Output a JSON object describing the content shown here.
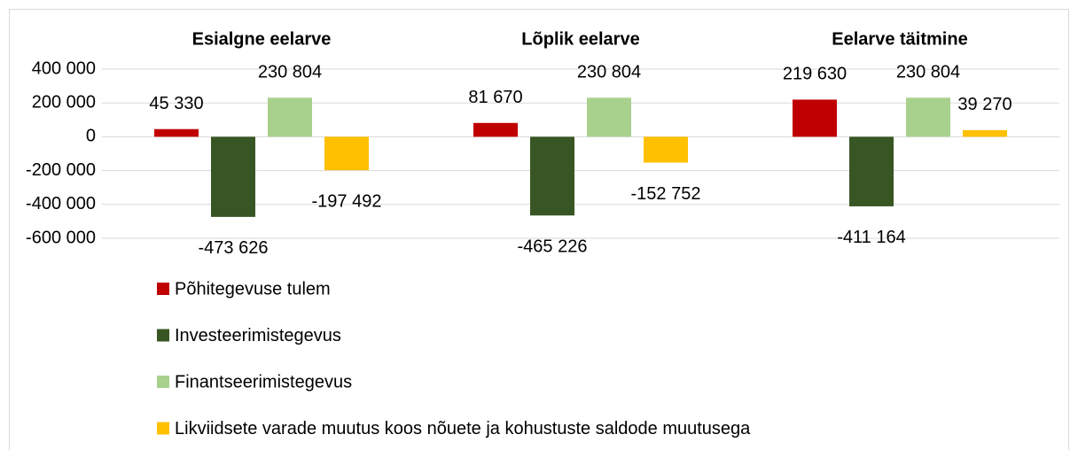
{
  "chart_data": {
    "type": "bar",
    "categories": [
      "Esialgne eelarve",
      "Lõplik eelarve",
      "Eelarve täitmine"
    ],
    "series": [
      {
        "name": "Põhitegevuse tulem",
        "color": "#c00000",
        "values": [
          45330,
          81670,
          219630
        ],
        "value_labels": [
          "45 330",
          "81 670",
          "219 630"
        ]
      },
      {
        "name": "Investeerimistegevus",
        "color": "#375623",
        "values": [
          -473626,
          -465226,
          -411164
        ],
        "value_labels": [
          "-473 626",
          "-465 226",
          "-411 164"
        ]
      },
      {
        "name": "Finantseerimistegevus",
        "color": "#a9d18e",
        "values": [
          230804,
          230804,
          230804
        ],
        "value_labels": [
          "230 804",
          "230 804",
          "230 804"
        ]
      },
      {
        "name": "Likviidsete varade muutus koos nõuete ja kohustuste saldode muutusega",
        "color": "#ffc000",
        "values": [
          -197492,
          -152752,
          39270
        ],
        "value_labels": [
          "-197 492",
          "-152 752",
          "39 270"
        ]
      }
    ],
    "ylim": [
      -600000,
      400000
    ],
    "yticks": [
      {
        "value": -600000,
        "label": "-600 000"
      },
      {
        "value": -400000,
        "label": "-400 000"
      },
      {
        "value": -200000,
        "label": "-200 000"
      },
      0,
      {
        "value": 200000,
        "label": "200 000"
      },
      {
        "value": 400000,
        "label": "400 000"
      }
    ],
    "grid": true,
    "legend": "bottom"
  }
}
